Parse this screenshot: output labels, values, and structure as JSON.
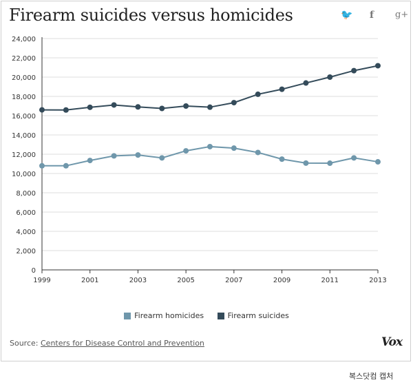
{
  "header": {
    "title": "Firearm suicides versus homicides"
  },
  "share": {
    "twitter_icon": "twitter-icon",
    "facebook_icon": "facebook-icon",
    "googleplus_icon": "google-plus-icon"
  },
  "footer": {
    "source_prefix": "Source:",
    "source_link": "Centers for Disease Control and Prevention",
    "brand": "Vox",
    "caption": "복스닷컴 캡처"
  },
  "colors": {
    "homicides": "#6f97ab",
    "suicides": "#344b5a",
    "grid": "#dddddd",
    "axis": "#333333"
  },
  "chart_data": {
    "type": "line",
    "title": "Firearm suicides versus homicides",
    "xlabel": "",
    "ylabel": "",
    "x": [
      1999,
      2000,
      2001,
      2002,
      2003,
      2004,
      2005,
      2006,
      2007,
      2008,
      2009,
      2010,
      2011,
      2012,
      2013
    ],
    "x_tick_labels": [
      "1999",
      "2001",
      "2003",
      "2005",
      "2007",
      "2009",
      "2011",
      "2013"
    ],
    "x_tick_values": [
      1999,
      2001,
      2003,
      2005,
      2007,
      2009,
      2011,
      2013
    ],
    "y_tick_labels": [
      "0",
      "2,000",
      "4,000",
      "6,000",
      "8,000",
      "10,000",
      "12,000",
      "14,000",
      "16,000",
      "18,000",
      "20,000",
      "22,000",
      "24,000"
    ],
    "y_tick_values": [
      0,
      2000,
      4000,
      6000,
      8000,
      10000,
      12000,
      14000,
      16000,
      18000,
      20000,
      22000,
      24000
    ],
    "ylim": [
      0,
      24000
    ],
    "xlim": [
      1999,
      2013
    ],
    "grid": "horizontal",
    "legend_position": "bottom",
    "series": [
      {
        "name": "Firearm homicides",
        "color": "#6f97ab",
        "values": [
          10800,
          10800,
          11350,
          11830,
          11920,
          11620,
          12350,
          12790,
          12630,
          12180,
          11490,
          11080,
          11070,
          11620,
          11210
        ]
      },
      {
        "name": "Firearm suicides",
        "color": "#344b5a",
        "values": [
          16600,
          16590,
          16870,
          17110,
          16910,
          16750,
          17000,
          16880,
          17350,
          18220,
          18740,
          19390,
          20000,
          20670,
          21180
        ]
      }
    ]
  }
}
